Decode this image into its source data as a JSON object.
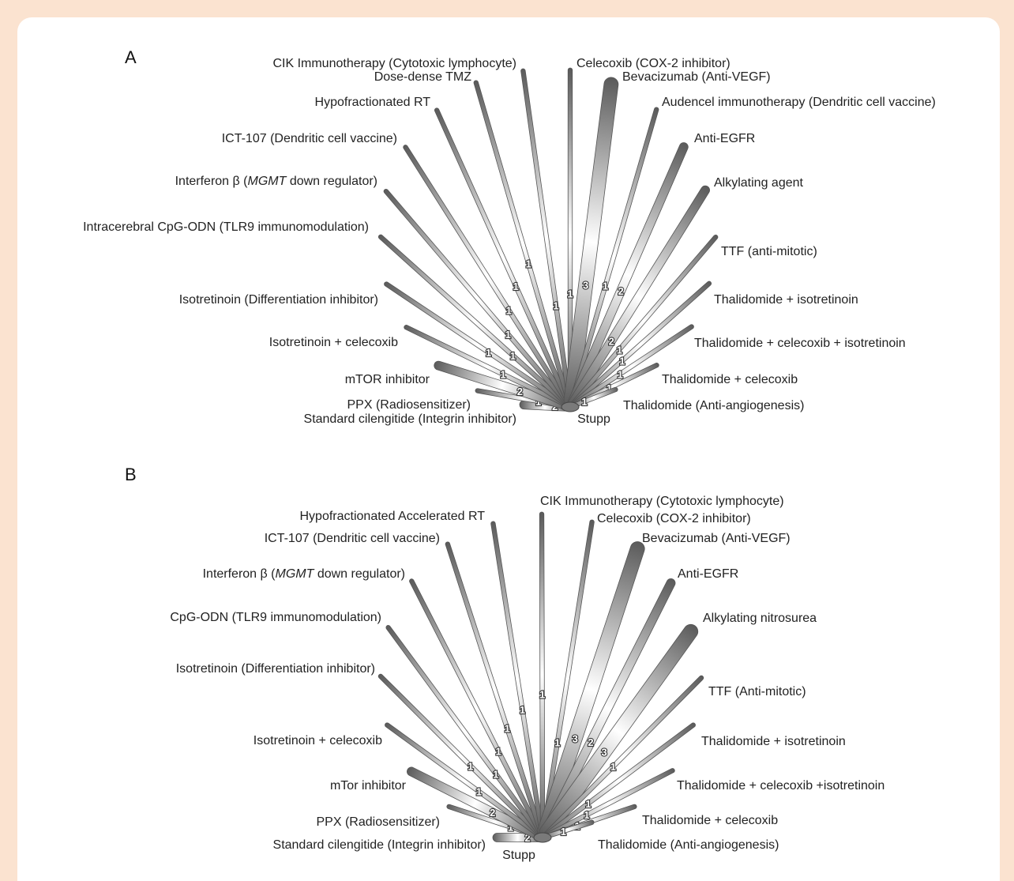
{
  "colors": {
    "background": "#fbe3d0",
    "panel": "#ffffff",
    "edge": "#8a8a8a",
    "text": "#222222"
  },
  "panels": [
    {
      "id": "A",
      "letter": "A",
      "hub": "Stupp",
      "edges": [
        {
          "node": "Standard cilengitide (Integrin inhibitor)",
          "count": "2"
        },
        {
          "node": "PPX (Radiosensitizer)",
          "count": "1"
        },
        {
          "node": "mTOR inhibitor",
          "count": "2"
        },
        {
          "node": "Isotretinoin + celecoxib",
          "count": "1"
        },
        {
          "node": "Isotretinoin (Differentiation inhibitor)",
          "count": "1"
        },
        {
          "node": "Intracerebral CpG-ODN (TLR9 immunomodulation)",
          "count": "1"
        },
        {
          "node": "Interferon β (MGMT down regulator)",
          "count": "1",
          "italic": "MGMT"
        },
        {
          "node": "ICT-107 (Dendritic cell vaccine)",
          "count": "1"
        },
        {
          "node": "Hypofractionated RT",
          "count": "1"
        },
        {
          "node": "Dose-dense TMZ",
          "count": "1"
        },
        {
          "node": "CIK Immunotherapy (Cytotoxic lymphocyte)",
          "count": "1"
        },
        {
          "node": "Celecoxib (COX-2 inhibitor)",
          "count": "1"
        },
        {
          "node": "Bevacizumab (Anti-VEGF)",
          "count": "3"
        },
        {
          "node": "Audencel immunotherapy (Dendritic cell vaccine)",
          "count": "1"
        },
        {
          "node": "Anti-EGFR",
          "count": "2"
        },
        {
          "node": "Alkylating agent",
          "count": "2"
        },
        {
          "node": "TTF (anti-mitotic)",
          "count": "1"
        },
        {
          "node": "Thalidomide + isotretinoin",
          "count": "1"
        },
        {
          "node": "Thalidomide + celecoxib + isotretinoin",
          "count": "1"
        },
        {
          "node": "Thalidomide + celecoxib",
          "count": "1"
        },
        {
          "node": "Thalidomide (Anti-angiogenesis)",
          "count": "1"
        }
      ]
    },
    {
      "id": "B",
      "letter": "B",
      "hub": "Stupp",
      "edges": [
        {
          "node": "Standard cilengitide (Integrin inhibitor)",
          "count": "2"
        },
        {
          "node": "PPX (Radiosensitizer)",
          "count": "1"
        },
        {
          "node": "mTor inhibitor",
          "count": "2"
        },
        {
          "node": "Isotretinoin + celecoxib",
          "count": "1"
        },
        {
          "node": "Isotretinoin (Differentiation inhibitor)",
          "count": "1"
        },
        {
          "node": "CpG-ODN (TLR9 immunomodulation)",
          "count": "1"
        },
        {
          "node": "Interferon β (MGMT down regulator)",
          "count": "1",
          "italic": "MGMT"
        },
        {
          "node": "ICT-107 (Dendritic cell vaccine)",
          "count": "1"
        },
        {
          "node": "Hypofractionated Accelerated RT",
          "count": "1"
        },
        {
          "node": "CIK Immunotherapy (Cytotoxic lymphocyte)",
          "count": "1"
        },
        {
          "node": "Celecoxib (COX-2 inhibitor)",
          "count": "1"
        },
        {
          "node": "Bevacizumab (Anti-VEGF)",
          "count": "3"
        },
        {
          "node": "Anti-EGFR",
          "count": "2"
        },
        {
          "node": "Alkylating nitrosurea",
          "count": "3"
        },
        {
          "node": "TTF (Anti-mitotic)",
          "count": "1"
        },
        {
          "node": "Thalidomide + isotretinoin",
          "count": "1"
        },
        {
          "node": "Thalidomide + celecoxib +isotretinoin",
          "count": "1"
        },
        {
          "node": "Thalidomide + celecoxib",
          "count": "1"
        },
        {
          "node": "Thalidomide (Anti-angiogenesis)",
          "count": "1"
        }
      ]
    }
  ]
}
